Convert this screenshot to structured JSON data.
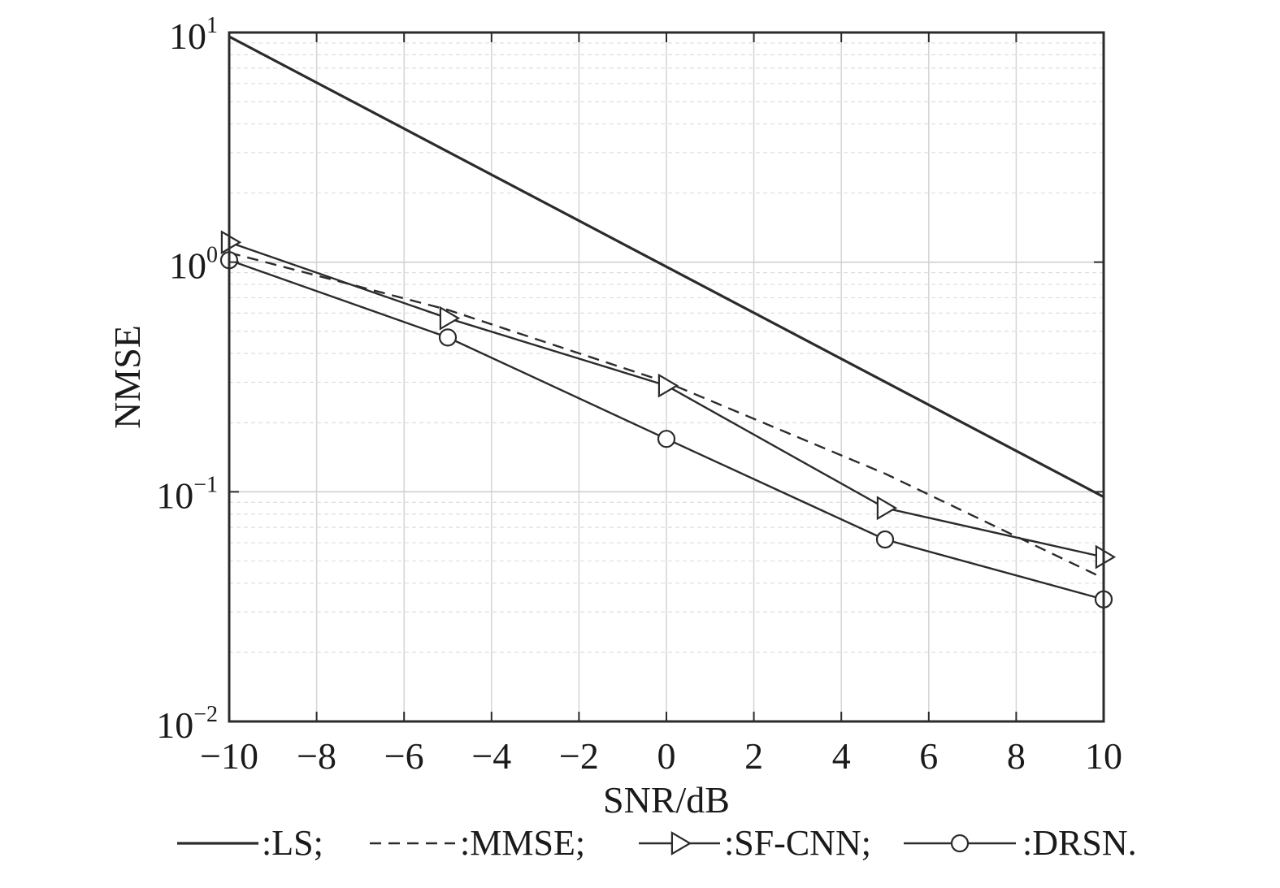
{
  "chart_data": {
    "type": "line",
    "title": "",
    "xlabel": "SNR/dB",
    "ylabel": "NMSE",
    "xlim": [
      -10,
      10
    ],
    "ylim": [
      0.01,
      10
    ],
    "yscale": "log",
    "grid": true,
    "legend_placement": "bottom",
    "x_ticks": [
      "-10",
      "-8",
      "-6",
      "-4",
      "-2",
      "0",
      "2",
      "4",
      "6",
      "8",
      "10"
    ],
    "y_ticks": [
      {
        "base": "10",
        "exp": "1",
        "value": 10
      },
      {
        "base": "10",
        "exp": "0",
        "value": 1
      },
      {
        "base": "10",
        "exp": "-1",
        "value": 0.1
      },
      {
        "base": "10",
        "exp": "-2",
        "value": 0.01
      }
    ],
    "series": [
      {
        "name": ":LS;",
        "style": "solid",
        "marker": "none",
        "color": "#2b2b2b",
        "x": [
          -10,
          10
        ],
        "y": [
          9.6,
          0.095
        ]
      },
      {
        "name": ":MMSE;",
        "style": "dashed",
        "marker": "none",
        "color": "#2b2b2b",
        "x": [
          -10,
          -5,
          0,
          5,
          10
        ],
        "y": [
          1.1,
          0.62,
          0.3,
          0.12,
          0.042
        ]
      },
      {
        "name": ":SF-CNN;",
        "style": "solid",
        "marker": "triangle-right",
        "color": "#2b2b2b",
        "x": [
          -10,
          -5,
          0,
          5,
          10
        ],
        "y": [
          1.22,
          0.57,
          0.29,
          0.085,
          0.052
        ]
      },
      {
        "name": ":DRSN.",
        "style": "solid",
        "marker": "circle",
        "color": "#2b2b2b",
        "x": [
          -10,
          -5,
          0,
          5,
          10
        ],
        "y": [
          1.02,
          0.47,
          0.17,
          0.062,
          0.034
        ]
      }
    ]
  }
}
